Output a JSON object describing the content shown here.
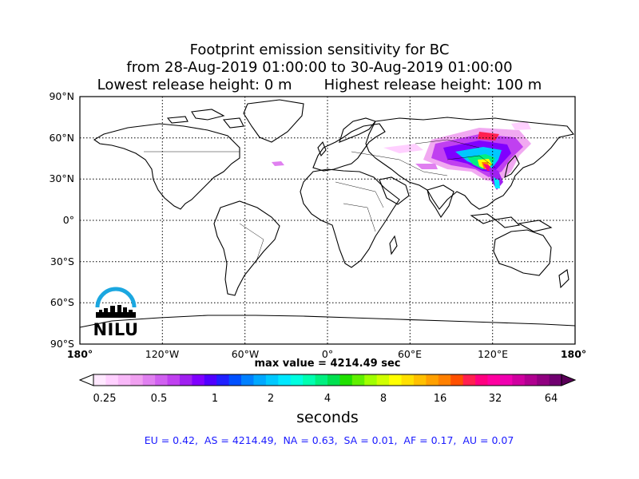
{
  "title": {
    "line1": "Footprint emission sensitivity for BC",
    "line2": "from 28-Aug-2019 01:00:00 to 30-Aug-2019 01:00:00",
    "line3": "Lowest release height: 0 m       Highest release height: 100 m"
  },
  "map": {
    "lat_labels": [
      "90°N",
      "60°N",
      "30°N",
      "0°",
      "30°S",
      "60°S",
      "90°S"
    ],
    "lon_labels": [
      "180°",
      "120°W",
      "60°W",
      "0°",
      "60°E",
      "120°E",
      "180°"
    ],
    "max_value_text": "max value = 4214.49 sec",
    "grid": "dotted",
    "projection": "equirectangular"
  },
  "colorbar": {
    "ticks": [
      "0.25",
      "0.5",
      "1",
      "2",
      "4",
      "8",
      "16",
      "32",
      "64"
    ],
    "label": "seconds",
    "colors": [
      "#ffe8ff",
      "#ffd0ff",
      "#f8b8f8",
      "#f0a0f0",
      "#e080f0",
      "#d060f0",
      "#c040f0",
      "#a020f0",
      "#8000ff",
      "#5000ff",
      "#2020ff",
      "#0050ff",
      "#0080ff",
      "#00a8ff",
      "#00c8ff",
      "#00e8ff",
      "#00ffe0",
      "#00ffb0",
      "#00f080",
      "#00e050",
      "#20e000",
      "#60f000",
      "#a0ff00",
      "#d0ff00",
      "#ffff00",
      "#ffe000",
      "#ffc000",
      "#ffa000",
      "#ff8000",
      "#ff5000",
      "#ff2050",
      "#ff0080",
      "#ff00a0",
      "#f000b0",
      "#d000a0",
      "#b00090",
      "#900080",
      "#700070"
    ]
  },
  "footer": "EU = 0.42,  AS = 4214.49,  NA = 0.63,  SA = 0.01,  AF = 0.17,  AU = 0.07",
  "logo": {
    "text": "NILU",
    "color": "#1ba7e0"
  }
}
